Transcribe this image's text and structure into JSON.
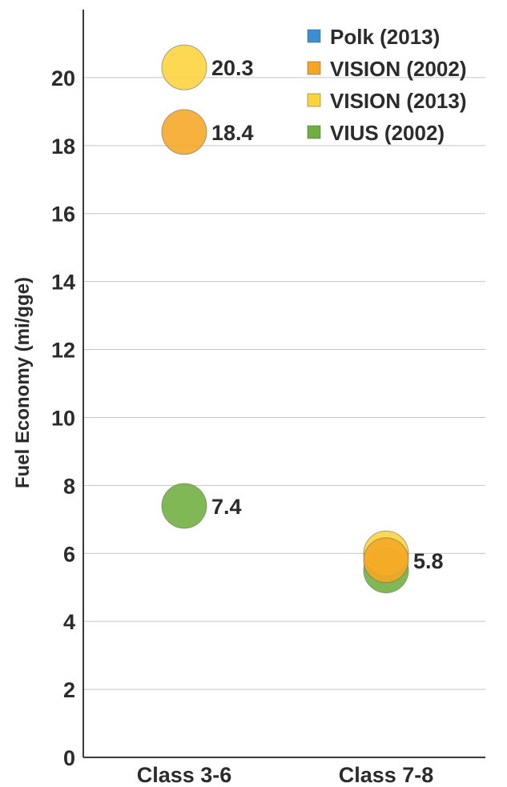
{
  "chart_data": {
    "type": "scatter",
    "title": "",
    "ylabel": "Fuel Economy (mi/gge)",
    "xlabel": "",
    "categories": [
      "Class 3-6",
      "Class 7-8"
    ],
    "ylim": [
      0,
      22
    ],
    "yticks": [
      0,
      2,
      4,
      6,
      8,
      10,
      12,
      14,
      16,
      18,
      20
    ],
    "grid": true,
    "legend_position": "top-right",
    "series": [
      {
        "name": "Polk (2013)",
        "color": "#3a8fd1",
        "values": [
          null,
          null
        ]
      },
      {
        "name": "VISION (2002)",
        "color": "#f5a623",
        "values": [
          18.4,
          5.8
        ]
      },
      {
        "name": "VISION (2013)",
        "color": "#fdd33a",
        "values": [
          20.3,
          6.0
        ]
      },
      {
        "name": "VIUS (2002)",
        "color": "#6fae3f",
        "values": [
          7.4,
          5.5
        ]
      }
    ],
    "data_labels": [
      {
        "category": "Class 3-6",
        "value": 20.3,
        "text": "20.3"
      },
      {
        "category": "Class 3-6",
        "value": 18.4,
        "text": "18.4"
      },
      {
        "category": "Class 3-6",
        "value": 7.4,
        "text": "7.4"
      },
      {
        "category": "Class 7-8",
        "value": 5.8,
        "text": "5.8"
      }
    ]
  }
}
